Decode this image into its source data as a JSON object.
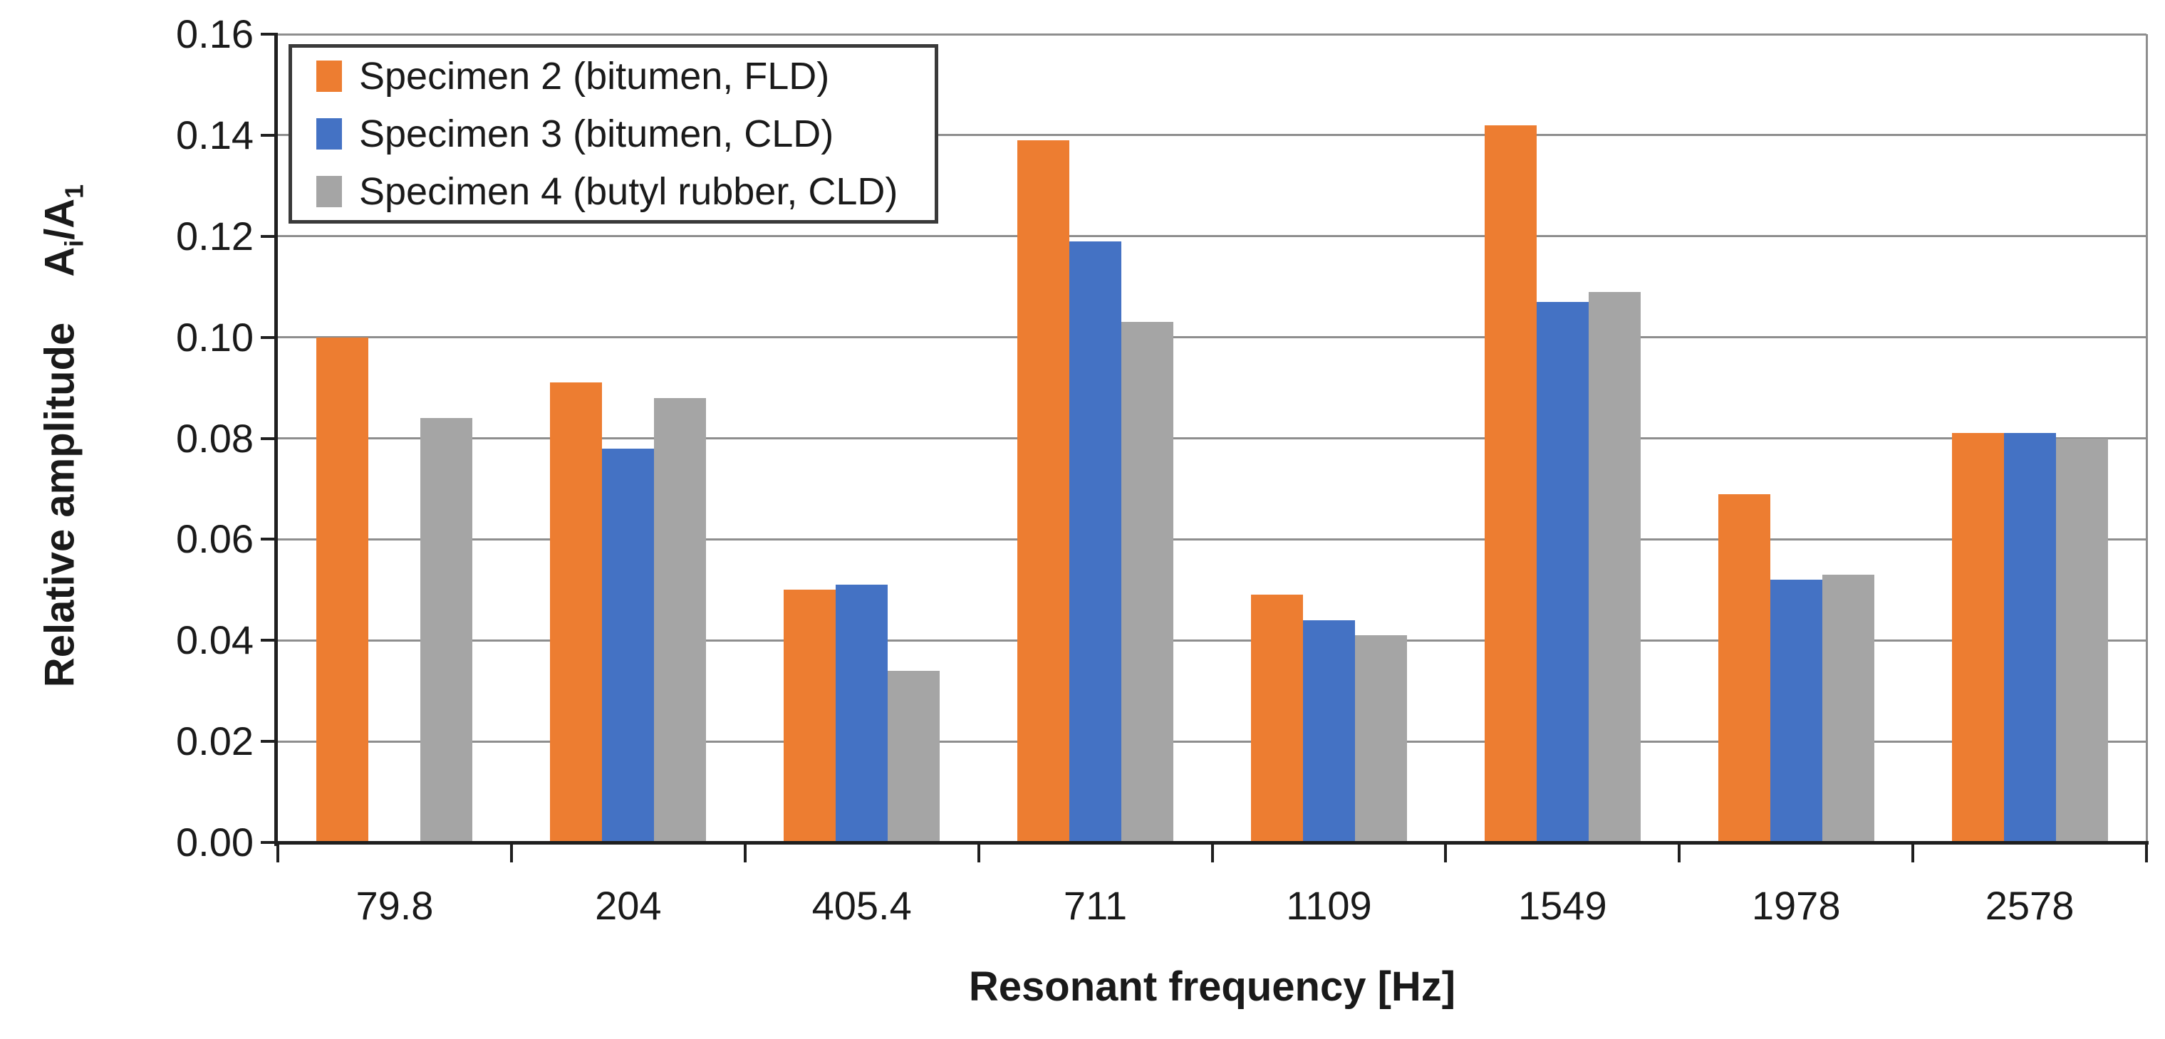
{
  "figure": {
    "kind": "grouped bar chart figure"
  },
  "chart_data": {
    "type": "bar",
    "title": "",
    "xlabel": "Resonant frequency [Hz]",
    "ylabel": "Relative amplitude Ai/A1",
    "ylabel_parts": {
      "main": "Relative amplitude",
      "var": "A",
      "var_sub": "i",
      "divider": "/A",
      "divider_sub": "1"
    },
    "categories": [
      "79.8",
      "204",
      "405.4",
      "711",
      "1109",
      "1549",
      "1978",
      "2578"
    ],
    "series": [
      {
        "name": "Specimen 2 (bitumen, FLD)",
        "color": "#ED7D31",
        "values": [
          0.1,
          0.091,
          0.05,
          0.139,
          0.049,
          0.142,
          0.069,
          0.081
        ]
      },
      {
        "name": "Specimen 3 (bitumen, CLD)",
        "color": "#4472C4",
        "values": [
          null,
          0.078,
          0.051,
          0.119,
          0.044,
          0.107,
          0.052,
          0.081
        ]
      },
      {
        "name": "Specimen 4 (butyl rubber, CLD)",
        "color": "#A5A5A5",
        "values": [
          0.084,
          0.088,
          0.034,
          0.103,
          0.041,
          0.109,
          0.053,
          0.08
        ]
      }
    ],
    "ylim": [
      0,
      0.16
    ],
    "ytick_labels": [
      "0.00",
      "0.02",
      "0.04",
      "0.06",
      "0.08",
      "0.10",
      "0.12",
      "0.14",
      "0.16"
    ],
    "grid": true,
    "legend_position": "top-left-inside"
  },
  "colors": {
    "axis": "#1F1F1F",
    "grid": "#8E8E8E",
    "text": "#1A1A1A",
    "legend_border": "#3A3A3A",
    "background": "#FFFFFF"
  }
}
